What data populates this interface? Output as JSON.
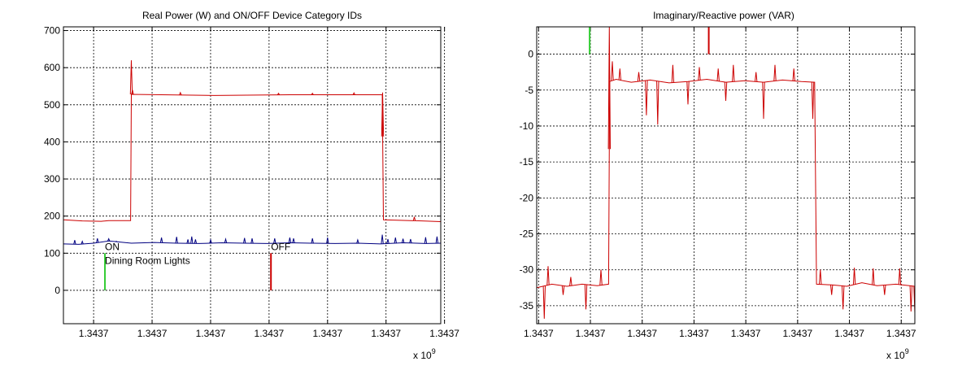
{
  "chart_data": [
    {
      "type": "line",
      "title": "Real Power (W) and ON/OFF Device Category IDs",
      "xlabel": "",
      "ylabel": "",
      "x_exponent_text": "x 10",
      "x_exponent_power": "9",
      "x_tick_labels": [
        "1.3437",
        "1.3437",
        "1.3437",
        "1.3437",
        "1.3437",
        "1.3437",
        "1.3437"
      ],
      "x_domain": [
        0,
        100
      ],
      "x_ticks": [
        8,
        23.5,
        39,
        54.5,
        70,
        85.5,
        101
      ],
      "y_ticks": [
        0,
        100,
        200,
        300,
        400,
        500,
        600,
        700
      ],
      "ylim": [
        -90,
        710
      ],
      "grid": true,
      "series": [
        {
          "color": "#cc0000",
          "points": [
            [
              0,
              190
            ],
            [
              5,
              187
            ],
            [
              10,
              186
            ],
            [
              12,
              188
            ],
            [
              17.8,
              188
            ],
            [
              18,
              528
            ],
            [
              40,
              525
            ],
            [
              60,
              527
            ],
            [
              84.5,
              527
            ],
            [
              84.8,
              190
            ],
            [
              95,
              187
            ],
            [
              100,
              185
            ]
          ],
          "spikes": [
            [
              18,
              620
            ],
            [
              18.3,
              540
            ],
            [
              84.6,
              533
            ],
            [
              93,
              198
            ],
            [
              31,
              533
            ],
            [
              57,
              531
            ],
            [
              66,
              531
            ],
            [
              77,
              532
            ]
          ]
        },
        {
          "color": "#000080",
          "points": [
            [
              0,
              125
            ],
            [
              4,
              124
            ],
            [
              8,
              127
            ],
            [
              12,
              133
            ],
            [
              18,
              127
            ],
            [
              24,
              129
            ],
            [
              30,
              127
            ],
            [
              36,
              126
            ],
            [
              42,
              128
            ],
            [
              48,
              127
            ],
            [
              54,
              126
            ],
            [
              60,
              128
            ],
            [
              66,
              127
            ],
            [
              72,
              126
            ],
            [
              78,
              127
            ],
            [
              84,
              125
            ],
            [
              90,
              128
            ],
            [
              96,
              126
            ],
            [
              100,
              127
            ]
          ],
          "spikes": [
            [
              3,
              135
            ],
            [
              5,
              132
            ],
            [
              9,
              140
            ],
            [
              12,
              139
            ],
            [
              14,
              132
            ],
            [
              26,
              142
            ],
            [
              30,
              144
            ],
            [
              33,
              137
            ],
            [
              34,
              145
            ],
            [
              35,
              137
            ],
            [
              39,
              136
            ],
            [
              43,
              138
            ],
            [
              48,
              141
            ],
            [
              50,
              140
            ],
            [
              56,
              140
            ],
            [
              60,
              142
            ],
            [
              61,
              140
            ],
            [
              66,
              140
            ],
            [
              70,
              142
            ],
            [
              78,
              136
            ],
            [
              84.5,
              150
            ],
            [
              86,
              138
            ],
            [
              88,
              142
            ],
            [
              90,
              139
            ],
            [
              92,
              138
            ],
            [
              96,
              143
            ],
            [
              99,
              145
            ]
          ]
        }
      ],
      "events": [
        {
          "x": 11,
          "value": 100,
          "color": "#33cc33",
          "label": "ON",
          "sublabel": "Dining Room Lights"
        },
        {
          "x": 55,
          "value": 100,
          "color": "#cc0000",
          "label": "OFF",
          "sublabel": ""
        }
      ]
    },
    {
      "type": "line",
      "title": "Imaginary/Reactive power (VAR)",
      "xlabel": "",
      "ylabel": "",
      "x_exponent_text": "x 10",
      "x_exponent_power": "9",
      "x_tick_labels": [
        "1.3437",
        "1.3437",
        "1.3437",
        "1.3437",
        "1.3437",
        "1.3437",
        "1.3437",
        "1.3437"
      ],
      "x_domain": [
        0,
        100
      ],
      "x_ticks": [
        0.5,
        14.2,
        27.9,
        41.6,
        55.3,
        69,
        82.7,
        96.4
      ],
      "y_ticks": [
        0,
        -5,
        -10,
        -15,
        -20,
        -25,
        -30,
        -35
      ],
      "ylim": [
        -37.5,
        3.8
      ],
      "grid": true,
      "series": [
        {
          "color": "#cc0000",
          "points": [
            [
              0,
              -32.5
            ],
            [
              4,
              -32
            ],
            [
              8,
              -32.3
            ],
            [
              12,
              -32
            ],
            [
              16,
              -32.2
            ],
            [
              19,
              -32
            ],
            [
              19.3,
              -3.8
            ],
            [
              21,
              -3.5
            ],
            [
              25,
              -3.9
            ],
            [
              30,
              -3.6
            ],
            [
              35,
              -4
            ],
            [
              40,
              -3.8
            ],
            [
              45,
              -3.5
            ],
            [
              50,
              -3.9
            ],
            [
              55,
              -3.7
            ],
            [
              60,
              -3.9
            ],
            [
              65,
              -3.6
            ],
            [
              70,
              -3.8
            ],
            [
              73.5,
              -3.9
            ],
            [
              74,
              -32
            ],
            [
              78,
              -32.1
            ],
            [
              82,
              -32.3
            ],
            [
              86,
              -31.8
            ],
            [
              90,
              -32.2
            ],
            [
              95,
              -32
            ],
            [
              100,
              -32.3
            ]
          ],
          "spikes": [
            [
              2,
              -36.8
            ],
            [
              3,
              -29.5
            ],
            [
              7,
              -33.5
            ],
            [
              9,
              -31
            ],
            [
              13,
              -35.5
            ],
            [
              17,
              -30
            ],
            [
              19.2,
              3.8
            ],
            [
              20,
              -1
            ],
            [
              22,
              -2
            ],
            [
              27,
              -2.5
            ],
            [
              29,
              -8.5
            ],
            [
              32,
              -9.8
            ],
            [
              36,
              -1.5
            ],
            [
              40,
              -7
            ],
            [
              43,
              -1.8
            ],
            [
              48,
              -2
            ],
            [
              50,
              -6.5
            ],
            [
              52,
              -1.5
            ],
            [
              58,
              -2.5
            ],
            [
              60,
              -9
            ],
            [
              63,
              -1.5
            ],
            [
              68,
              -2
            ],
            [
              73,
              -9
            ],
            [
              75,
              -30
            ],
            [
              78,
              -33.5
            ],
            [
              81,
              -35.5
            ],
            [
              84,
              -29.7
            ],
            [
              89,
              -29.8
            ],
            [
              92,
              -33.5
            ],
            [
              96,
              -29.8
            ],
            [
              99,
              -35.8
            ],
            [
              100,
              -36
            ]
          ]
        }
      ],
      "events": [
        {
          "x": 14,
          "value": 3.8,
          "color": "#33cc33",
          "label": "",
          "sublabel": ""
        },
        {
          "x": 45.5,
          "value": 3.8,
          "color": "#cc0000",
          "label": "",
          "sublabel": ""
        }
      ]
    }
  ]
}
